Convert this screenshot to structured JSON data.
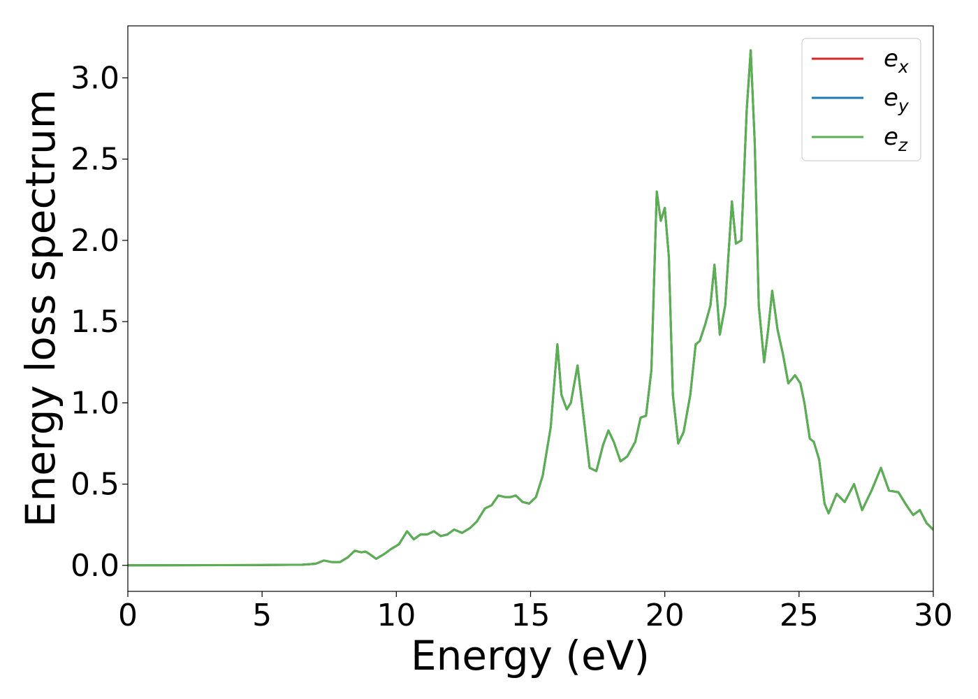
{
  "chart_data": {
    "type": "line",
    "title": "",
    "xlabel": "Energy (eV)",
    "ylabel": "Energy loss spectrum",
    "xlim": [
      0,
      30
    ],
    "ylim": [
      -0.16,
      3.32
    ],
    "xticks": [
      0,
      5,
      10,
      15,
      20,
      25,
      30
    ],
    "xtick_labels": [
      "0",
      "5",
      "10",
      "15",
      "20",
      "25",
      "30"
    ],
    "yticks": [
      0.0,
      0.5,
      1.0,
      1.5,
      2.0,
      2.5,
      3.0
    ],
    "ytick_labels": [
      "0.0",
      "0.5",
      "1.0",
      "1.5",
      "2.0",
      "2.5",
      "3.0"
    ],
    "grid": false,
    "legend_position": "top-right",
    "x": [
      0,
      5,
      6.5,
      7.0,
      7.3,
      7.6,
      7.9,
      8.2,
      8.45,
      8.7,
      8.85,
      9.0,
      9.25,
      9.55,
      9.8,
      10.1,
      10.4,
      10.65,
      10.9,
      11.15,
      11.4,
      11.65,
      11.9,
      12.15,
      12.45,
      12.75,
      13.0,
      13.3,
      13.55,
      13.8,
      14.05,
      14.25,
      14.45,
      14.7,
      14.95,
      15.2,
      15.45,
      15.75,
      16.0,
      16.15,
      16.35,
      16.5,
      16.75,
      16.95,
      17.2,
      17.45,
      17.7,
      17.9,
      18.1,
      18.35,
      18.6,
      18.9,
      19.1,
      19.3,
      19.5,
      19.7,
      19.85,
      20.0,
      20.15,
      20.3,
      20.5,
      20.7,
      20.95,
      21.15,
      21.3,
      21.5,
      21.7,
      21.85,
      22.05,
      22.25,
      22.5,
      22.65,
      22.85,
      23.05,
      23.2,
      23.35,
      23.5,
      23.7,
      23.85,
      24.0,
      24.2,
      24.4,
      24.6,
      24.85,
      25.05,
      25.2,
      25.4,
      25.55,
      25.75,
      25.95,
      26.1,
      26.4,
      26.7,
      27.05,
      27.35,
      27.7,
      28.05,
      28.35,
      28.7,
      29.0,
      29.25,
      29.5,
      29.75,
      30.0
    ],
    "series": [
      {
        "name": "e_x",
        "color": "#d62728",
        "values": [
          0.0,
          0.002,
          0.004,
          0.01,
          0.03,
          0.02,
          0.02,
          0.05,
          0.09,
          0.08,
          0.085,
          0.07,
          0.04,
          0.07,
          0.1,
          0.13,
          0.21,
          0.16,
          0.19,
          0.19,
          0.21,
          0.18,
          0.19,
          0.22,
          0.2,
          0.23,
          0.27,
          0.35,
          0.37,
          0.43,
          0.42,
          0.42,
          0.43,
          0.39,
          0.38,
          0.42,
          0.55,
          0.85,
          1.36,
          1.05,
          0.96,
          1.0,
          1.23,
          0.95,
          0.6,
          0.58,
          0.74,
          0.83,
          0.76,
          0.64,
          0.67,
          0.76,
          0.91,
          0.92,
          1.2,
          2.3,
          2.12,
          2.2,
          1.9,
          1.05,
          0.75,
          0.82,
          1.05,
          1.36,
          1.38,
          1.48,
          1.6,
          1.85,
          1.42,
          1.6,
          2.24,
          1.98,
          2.0,
          2.8,
          3.17,
          2.6,
          1.6,
          1.25,
          1.45,
          1.69,
          1.45,
          1.3,
          1.12,
          1.17,
          1.12,
          1.0,
          0.78,
          0.76,
          0.65,
          0.38,
          0.32,
          0.44,
          0.39,
          0.5,
          0.34,
          0.46,
          0.6,
          0.46,
          0.45,
          0.37,
          0.31,
          0.34,
          0.26,
          0.22
        ]
      },
      {
        "name": "e_y",
        "color": "#1f77b4",
        "values": [
          0.0,
          0.002,
          0.004,
          0.01,
          0.03,
          0.02,
          0.02,
          0.05,
          0.09,
          0.08,
          0.085,
          0.07,
          0.04,
          0.07,
          0.1,
          0.13,
          0.21,
          0.16,
          0.19,
          0.19,
          0.21,
          0.18,
          0.19,
          0.22,
          0.2,
          0.23,
          0.27,
          0.35,
          0.37,
          0.43,
          0.42,
          0.42,
          0.43,
          0.39,
          0.38,
          0.42,
          0.55,
          0.85,
          1.36,
          1.05,
          0.96,
          1.0,
          1.23,
          0.95,
          0.6,
          0.58,
          0.74,
          0.83,
          0.76,
          0.64,
          0.67,
          0.76,
          0.91,
          0.92,
          1.2,
          2.3,
          2.12,
          2.2,
          1.9,
          1.05,
          0.75,
          0.82,
          1.05,
          1.36,
          1.38,
          1.48,
          1.6,
          1.85,
          1.42,
          1.6,
          2.24,
          1.98,
          2.0,
          2.8,
          3.17,
          2.6,
          1.6,
          1.25,
          1.45,
          1.69,
          1.45,
          1.3,
          1.12,
          1.17,
          1.12,
          1.0,
          0.78,
          0.76,
          0.65,
          0.38,
          0.32,
          0.44,
          0.39,
          0.5,
          0.34,
          0.46,
          0.6,
          0.46,
          0.45,
          0.37,
          0.31,
          0.34,
          0.26,
          0.22
        ]
      },
      {
        "name": "e_z",
        "color": "#5aaf50",
        "values": [
          0.0,
          0.002,
          0.004,
          0.01,
          0.03,
          0.02,
          0.02,
          0.05,
          0.09,
          0.08,
          0.085,
          0.07,
          0.04,
          0.07,
          0.1,
          0.13,
          0.21,
          0.16,
          0.19,
          0.19,
          0.21,
          0.18,
          0.19,
          0.22,
          0.2,
          0.23,
          0.27,
          0.35,
          0.37,
          0.43,
          0.42,
          0.42,
          0.43,
          0.39,
          0.38,
          0.42,
          0.55,
          0.85,
          1.36,
          1.05,
          0.96,
          1.0,
          1.23,
          0.95,
          0.6,
          0.58,
          0.74,
          0.83,
          0.76,
          0.64,
          0.67,
          0.76,
          0.91,
          0.92,
          1.2,
          2.3,
          2.12,
          2.2,
          1.9,
          1.05,
          0.75,
          0.82,
          1.05,
          1.36,
          1.38,
          1.48,
          1.6,
          1.85,
          1.42,
          1.6,
          2.24,
          1.98,
          2.0,
          2.8,
          3.17,
          2.6,
          1.6,
          1.25,
          1.45,
          1.69,
          1.45,
          1.3,
          1.12,
          1.17,
          1.12,
          1.0,
          0.78,
          0.76,
          0.65,
          0.38,
          0.32,
          0.44,
          0.39,
          0.5,
          0.34,
          0.46,
          0.6,
          0.46,
          0.45,
          0.37,
          0.31,
          0.34,
          0.26,
          0.22
        ]
      }
    ],
    "legend": [
      {
        "base": "e",
        "sub": "x",
        "color": "#d62728"
      },
      {
        "base": "e",
        "sub": "y",
        "color": "#1f77b4"
      },
      {
        "base": "e",
        "sub": "z",
        "color": "#5aaf50"
      }
    ]
  }
}
